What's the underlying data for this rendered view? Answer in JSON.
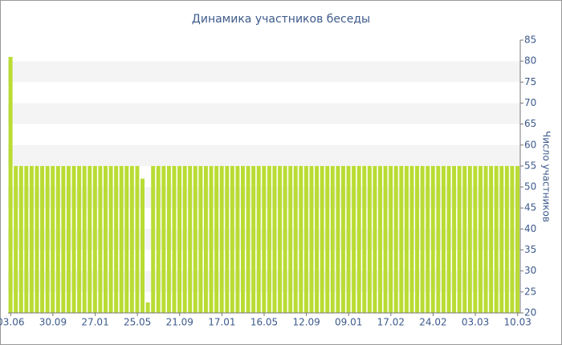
{
  "chart_data": {
    "type": "bar",
    "title": "Динамика участников беседы",
    "y_label": "Число участников",
    "categories": [
      "03.06",
      null,
      null,
      null,
      null,
      null,
      null,
      null,
      "30.09",
      null,
      null,
      null,
      null,
      null,
      null,
      null,
      "27.01",
      null,
      null,
      null,
      null,
      null,
      null,
      null,
      "25.05",
      null,
      null,
      null,
      null,
      null,
      null,
      null,
      "21.09",
      null,
      null,
      null,
      null,
      null,
      null,
      null,
      "17.01",
      null,
      null,
      null,
      null,
      null,
      null,
      null,
      "16.05",
      null,
      null,
      null,
      null,
      null,
      null,
      null,
      "12.09",
      null,
      null,
      null,
      null,
      null,
      null,
      null,
      "09.01",
      null,
      null,
      null,
      null,
      null,
      null,
      null,
      "17.02",
      null,
      null,
      null,
      null,
      null,
      null,
      null,
      "24.02",
      null,
      null,
      null,
      null,
      null,
      null,
      null,
      "03.03",
      null,
      null,
      null,
      null,
      null,
      null,
      null,
      "10.03"
    ],
    "values": [
      81,
      55,
      55,
      55,
      55,
      55,
      55,
      55,
      55,
      55,
      55,
      55,
      55,
      55,
      55,
      55,
      55,
      55,
      55,
      55,
      55,
      55,
      55,
      55,
      55,
      52,
      22.5,
      55,
      55,
      55,
      55,
      55,
      55,
      55,
      55,
      55,
      55,
      55,
      55,
      55,
      55,
      55,
      55,
      55,
      55,
      55,
      55,
      55,
      55,
      55,
      55,
      55,
      55,
      55,
      55,
      55,
      55,
      55,
      55,
      55,
      55,
      55,
      55,
      55,
      55,
      55,
      55,
      55,
      55,
      55,
      55,
      55,
      55,
      55,
      55,
      55,
      55,
      55,
      55,
      55,
      55,
      55,
      55,
      55,
      55,
      55,
      55,
      55,
      55,
      55,
      55,
      55,
      55,
      55,
      55,
      55,
      55
    ],
    "color": "#b9dc33",
    "ylim": [
      20,
      85
    ],
    "yticks": [
      20,
      25,
      30,
      35,
      40,
      45,
      50,
      55,
      60,
      65,
      70,
      75,
      80,
      85
    ],
    "y_axis_side": "right",
    "grid": "bands"
  }
}
